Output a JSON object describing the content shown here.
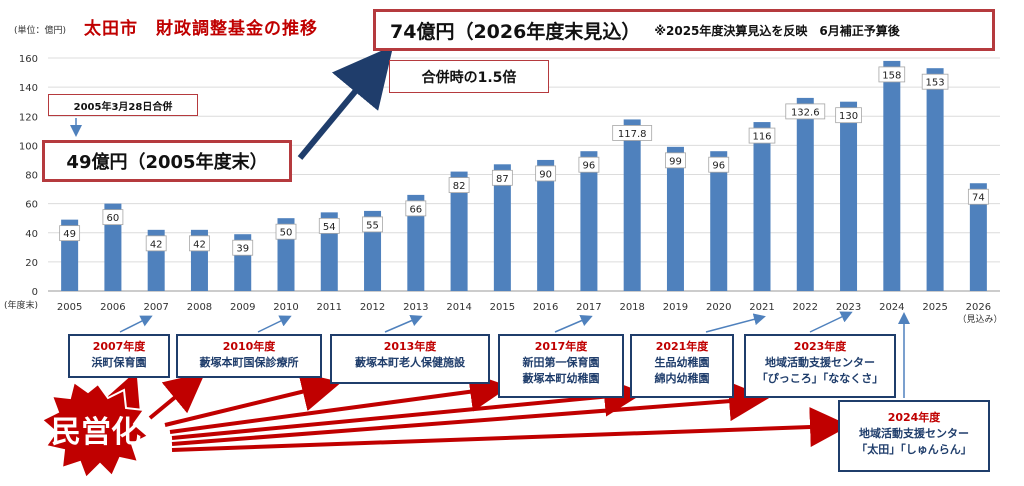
{
  "unit_label": "(単位：億円)",
  "title": "太田市　財政調整基金の推移",
  "header_box": {
    "main": "74億円（2026年度末見込）",
    "note": "※2025年度決算見込を反映　6月補正予算後"
  },
  "ratio_label": "合併時の1.5倍",
  "merger_label": "2005年3月28日合併",
  "start_box": "49億円（2005年度末）",
  "x_axis_prefix": "(年度末)",
  "x_suffix_label": "（見込み）",
  "colors": {
    "bar": "#4f81bd",
    "accent_red": "#c00000",
    "box_border": "#b53a3e",
    "navy": "#1f3d6b"
  },
  "chart_data": {
    "type": "bar",
    "categories": [
      "2005",
      "2006",
      "2007",
      "2008",
      "2009",
      "2010",
      "2011",
      "2012",
      "2013",
      "2014",
      "2015",
      "2016",
      "2017",
      "2018",
      "2019",
      "2020",
      "2021",
      "2022",
      "2023",
      "2024",
      "2025",
      "2026"
    ],
    "values": [
      49,
      60,
      42,
      42,
      39,
      50,
      54,
      55,
      66,
      82,
      87,
      90,
      96,
      117.8,
      99,
      96,
      116,
      132.6,
      130,
      158,
      153,
      74
    ],
    "value_labels": [
      "49",
      "60",
      "42",
      "42",
      "39",
      "50",
      "54",
      "55",
      "66",
      "82",
      "87",
      "90",
      "96",
      "117.8",
      "99",
      "96",
      "116",
      "132.6",
      "130",
      "158",
      "153",
      "74"
    ],
    "ylim": [
      0,
      160
    ],
    "yticks": [
      "0",
      "20",
      "40",
      "60",
      "80",
      "100",
      "120",
      "140",
      "160"
    ],
    "grid": true,
    "title": "太田市　財政調整基金の推移",
    "ylabel": "(単位：億円)",
    "xlabel": "(年度末)"
  },
  "badge": "民営化",
  "privatizations": [
    {
      "year": "2007年度",
      "lines": [
        "浜町保育園"
      ]
    },
    {
      "year": "2010年度",
      "lines": [
        "藪塚本町国保診療所"
      ]
    },
    {
      "year": "2013年度",
      "lines": [
        "藪塚本町老人保健施設"
      ]
    },
    {
      "year": "2017年度",
      "lines": [
        "新田第一保育園",
        "藪塚本町幼稚園"
      ]
    },
    {
      "year": "2021年度",
      "lines": [
        "生品幼稚園",
        "綿内幼稚園"
      ]
    },
    {
      "year": "2023年度",
      "lines": [
        "地域活動支援センター",
        "「ぴっころ」「ななくさ」"
      ]
    },
    {
      "year": "2024年度",
      "lines": [
        "地域活動支援センター",
        "「太田」「しゅんらん」"
      ]
    }
  ]
}
